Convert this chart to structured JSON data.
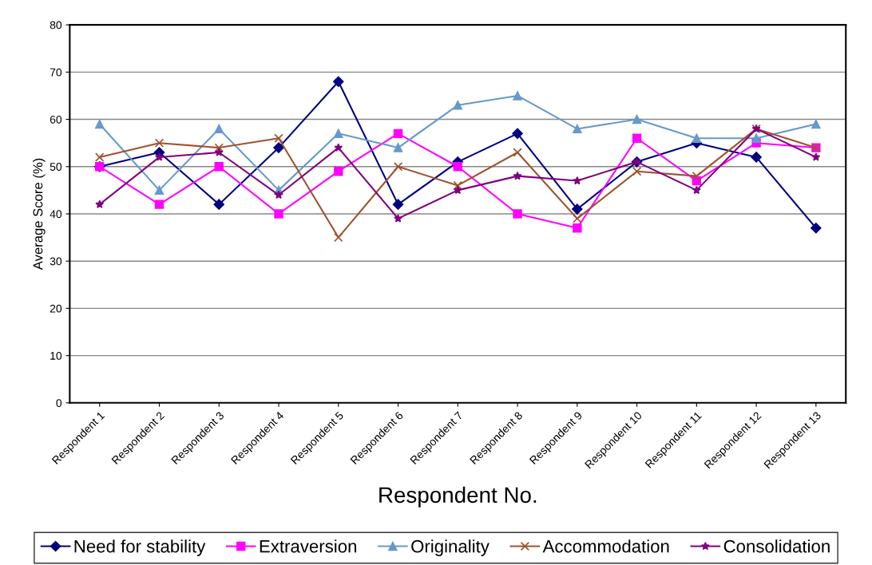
{
  "chart_data": {
    "type": "line",
    "xlabel": "Respondent No.",
    "ylabel": "Average Score (%)",
    "categories": [
      "Respondent 1",
      "Respondent 2",
      "Respondent 3",
      "Respondent 4",
      "Respondent 5",
      "Respondent 6",
      "Respondent 7",
      "Respondent 8",
      "Respondent 9",
      "Respondent 10",
      "Respondent 11",
      "Respondent 12",
      "Respondent 13"
    ],
    "series": [
      {
        "name": "Need for stability",
        "color": "#000080",
        "marker": "diamond",
        "values": [
          50,
          53,
          42,
          54,
          68,
          42,
          51,
          57,
          41,
          51,
          55,
          52,
          37
        ]
      },
      {
        "name": "Extraversion",
        "color": "#ff00ff",
        "marker": "square",
        "values": [
          50,
          42,
          50,
          40,
          49,
          57,
          50,
          40,
          37,
          56,
          47,
          55,
          54
        ]
      },
      {
        "name": "Originality",
        "color": "#6699cc",
        "marker": "triangle",
        "values": [
          59,
          45,
          58,
          45,
          57,
          54,
          63,
          65,
          58,
          60,
          56,
          56,
          59
        ]
      },
      {
        "name": "Accommodation",
        "color": "#a0522d",
        "marker": "cross",
        "values": [
          52,
          55,
          54,
          56,
          35,
          50,
          46,
          53,
          39,
          49,
          48,
          58,
          54
        ]
      },
      {
        "name": "Consolidation",
        "color": "#800080",
        "marker": "star",
        "values": [
          42,
          52,
          53,
          44,
          54,
          39,
          45,
          48,
          47,
          51,
          45,
          58,
          52
        ]
      }
    ],
    "ylim": [
      0,
      80
    ],
    "yticks": [
      0,
      10,
      20,
      30,
      40,
      50,
      60,
      70,
      80
    ],
    "grid": "y",
    "legend": "bottom",
    "line_style": "solid"
  }
}
